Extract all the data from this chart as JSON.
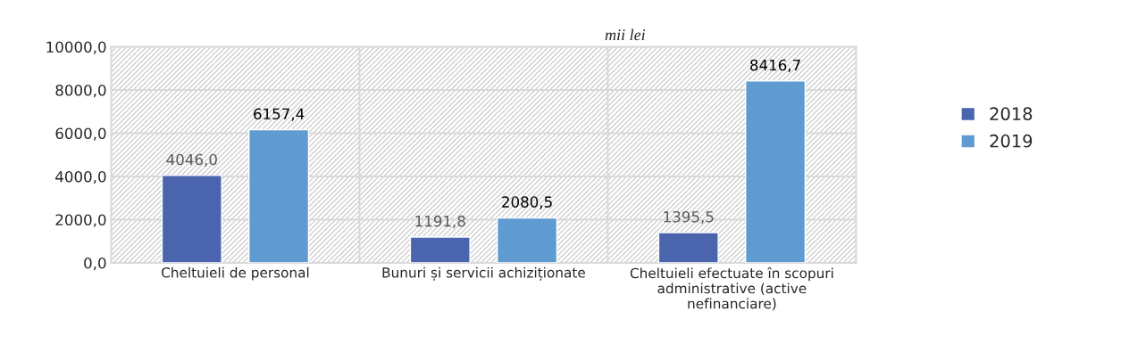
{
  "chart_data": {
    "type": "bar",
    "categories": [
      "Cheltuieli de personal",
      "Bunuri și servicii achiziționate",
      "Cheltuieli efectuate în scopuri administrative (active nefinanciare)"
    ],
    "series": [
      {
        "name": "2018",
        "color": "#4a64ae",
        "values": [
          4046.0,
          1191.8,
          1395.5
        ],
        "value_labels": [
          "4046,0",
          "1191,8",
          "1395,5"
        ]
      },
      {
        "name": "2019",
        "color": "#5f9bd0",
        "values": [
          6157.4,
          2080.5,
          8416.7
        ],
        "value_labels": [
          "6157,4",
          "2080,5",
          "8416,7"
        ]
      }
    ],
    "ylim": [
      0,
      10000
    ],
    "yticks": [
      {
        "value": 0,
        "label": "0,0"
      },
      {
        "value": 2000,
        "label": "2000,0"
      },
      {
        "value": 4000,
        "label": "4000,0"
      },
      {
        "value": 6000,
        "label": "6000,0"
      },
      {
        "value": 8000,
        "label": "8000,0"
      },
      {
        "value": 10000,
        "label": "10000,0"
      }
    ],
    "annotations": [
      "mii lei"
    ],
    "grid": true,
    "legend": "right"
  }
}
